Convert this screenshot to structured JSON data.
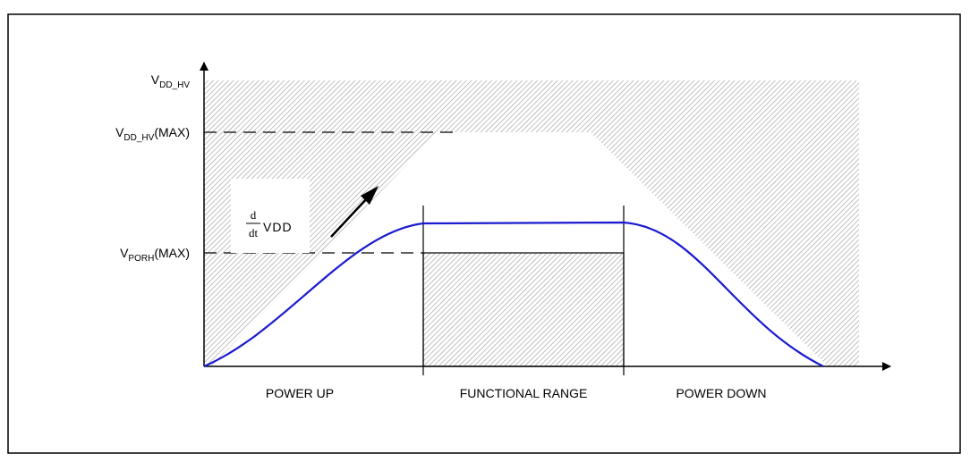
{
  "y_labels": [
    {
      "main": "V",
      "sub": "DD_HV",
      "suffix": ""
    },
    {
      "main": "V",
      "sub": "DD_HV",
      "suffix": "(MAX)"
    },
    {
      "main": "V",
      "sub": "PORH",
      "suffix": "(MAX)"
    }
  ],
  "derivative": {
    "numerator": "d",
    "denominator": "dt",
    "text": "VDD"
  },
  "regions": [
    "POWER UP",
    "FUNCTIONAL RANGE",
    "POWER DOWN"
  ]
}
